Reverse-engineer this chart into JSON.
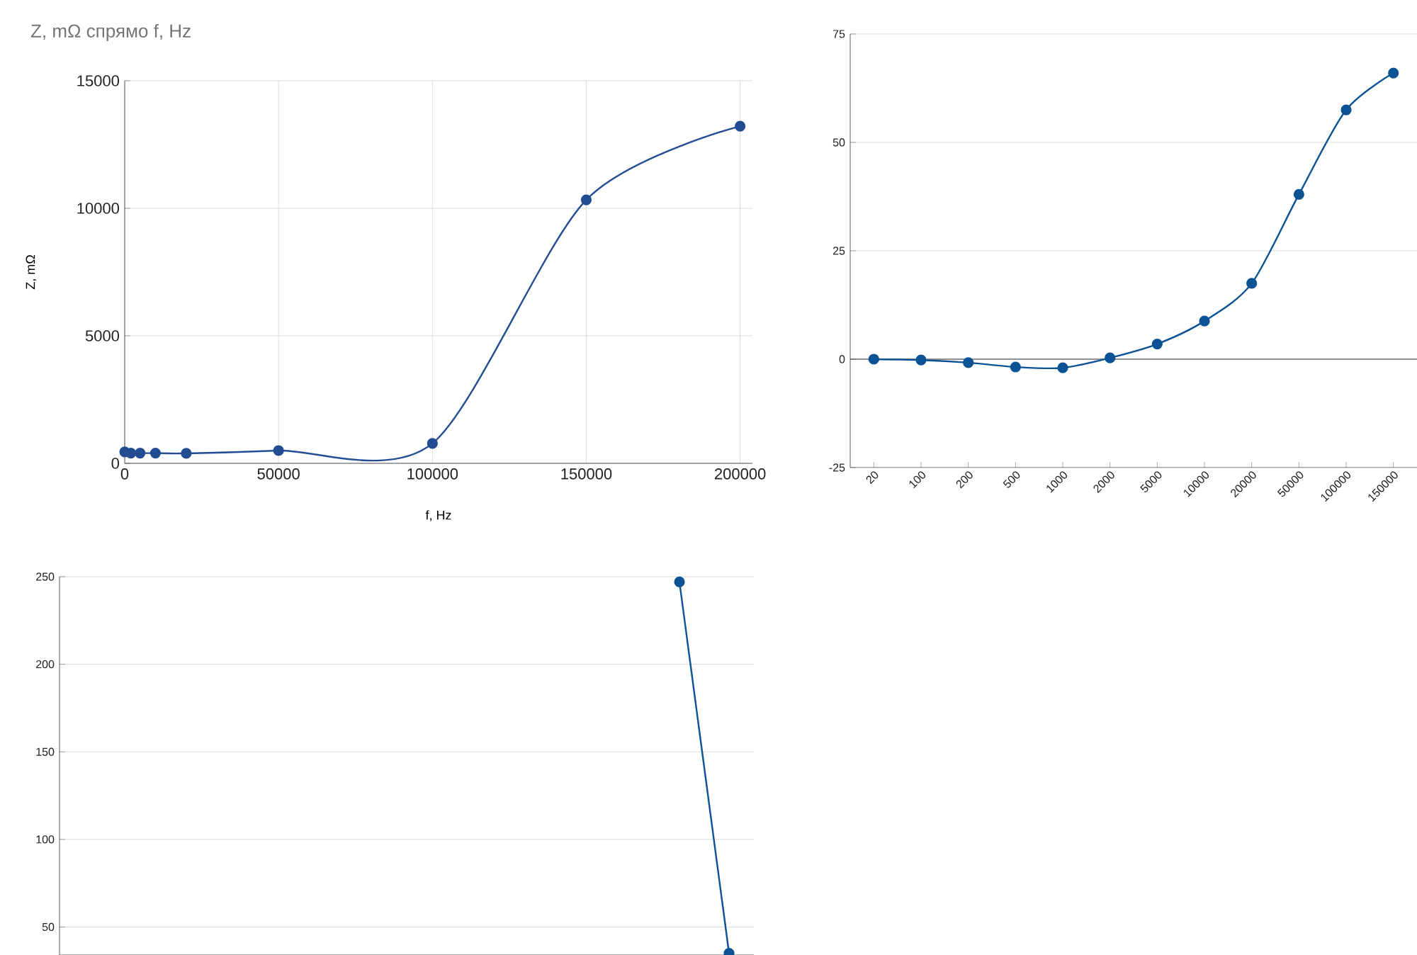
{
  "chart_data": [
    {
      "type": "line",
      "title": "Z, mΩ спрямо f, Hz",
      "xlabel": "f, Hz",
      "ylabel": "Z, mΩ",
      "x": [
        20,
        100,
        200,
        500,
        1000,
        2000,
        5000,
        10000,
        20000,
        50000,
        100000,
        150000,
        200000
      ],
      "values": [
        450,
        null,
        null,
        null,
        null,
        400,
        400,
        400,
        390,
        500,
        780,
        10330,
        13220
      ],
      "color": "#234d92",
      "xlim": [
        0,
        204000
      ],
      "ylim": [
        0,
        15000
      ],
      "xticks": [
        0,
        50000,
        100000,
        150000,
        200000
      ],
      "yticks": [
        0,
        5000,
        10000,
        15000
      ],
      "grid": true,
      "marker": "circle"
    },
    {
      "type": "line",
      "categories": [
        "20",
        "100",
        "200",
        "500",
        "1000",
        "2000",
        "5000",
        "10000",
        "20000",
        "50000",
        "100000",
        "150000"
      ],
      "values": [
        0,
        -0.2,
        -0.8,
        -1.8,
        -2,
        0.3,
        3.5,
        8.8,
        17.5,
        38,
        57.5,
        66
      ],
      "color": "#0b5394",
      "ylim": [
        -25,
        75
      ],
      "yticks": [
        -25,
        0,
        25,
        50,
        75
      ],
      "grid": "y",
      "marker": "circle"
    },
    {
      "type": "line",
      "categories": [
        null,
        null,
        null,
        null,
        null,
        null,
        null,
        null,
        null,
        null,
        null,
        null,
        null,
        null
      ],
      "values": [
        null,
        null,
        null,
        null,
        null,
        null,
        null,
        null,
        null,
        null,
        null,
        null,
        247,
        35
      ],
      "color": "#0b5394",
      "ylim": [
        34,
        250
      ],
      "yticks": [
        50,
        100,
        150,
        200,
        250
      ],
      "grid": "y",
      "marker": "circle",
      "tick_labels": "y"
    }
  ]
}
